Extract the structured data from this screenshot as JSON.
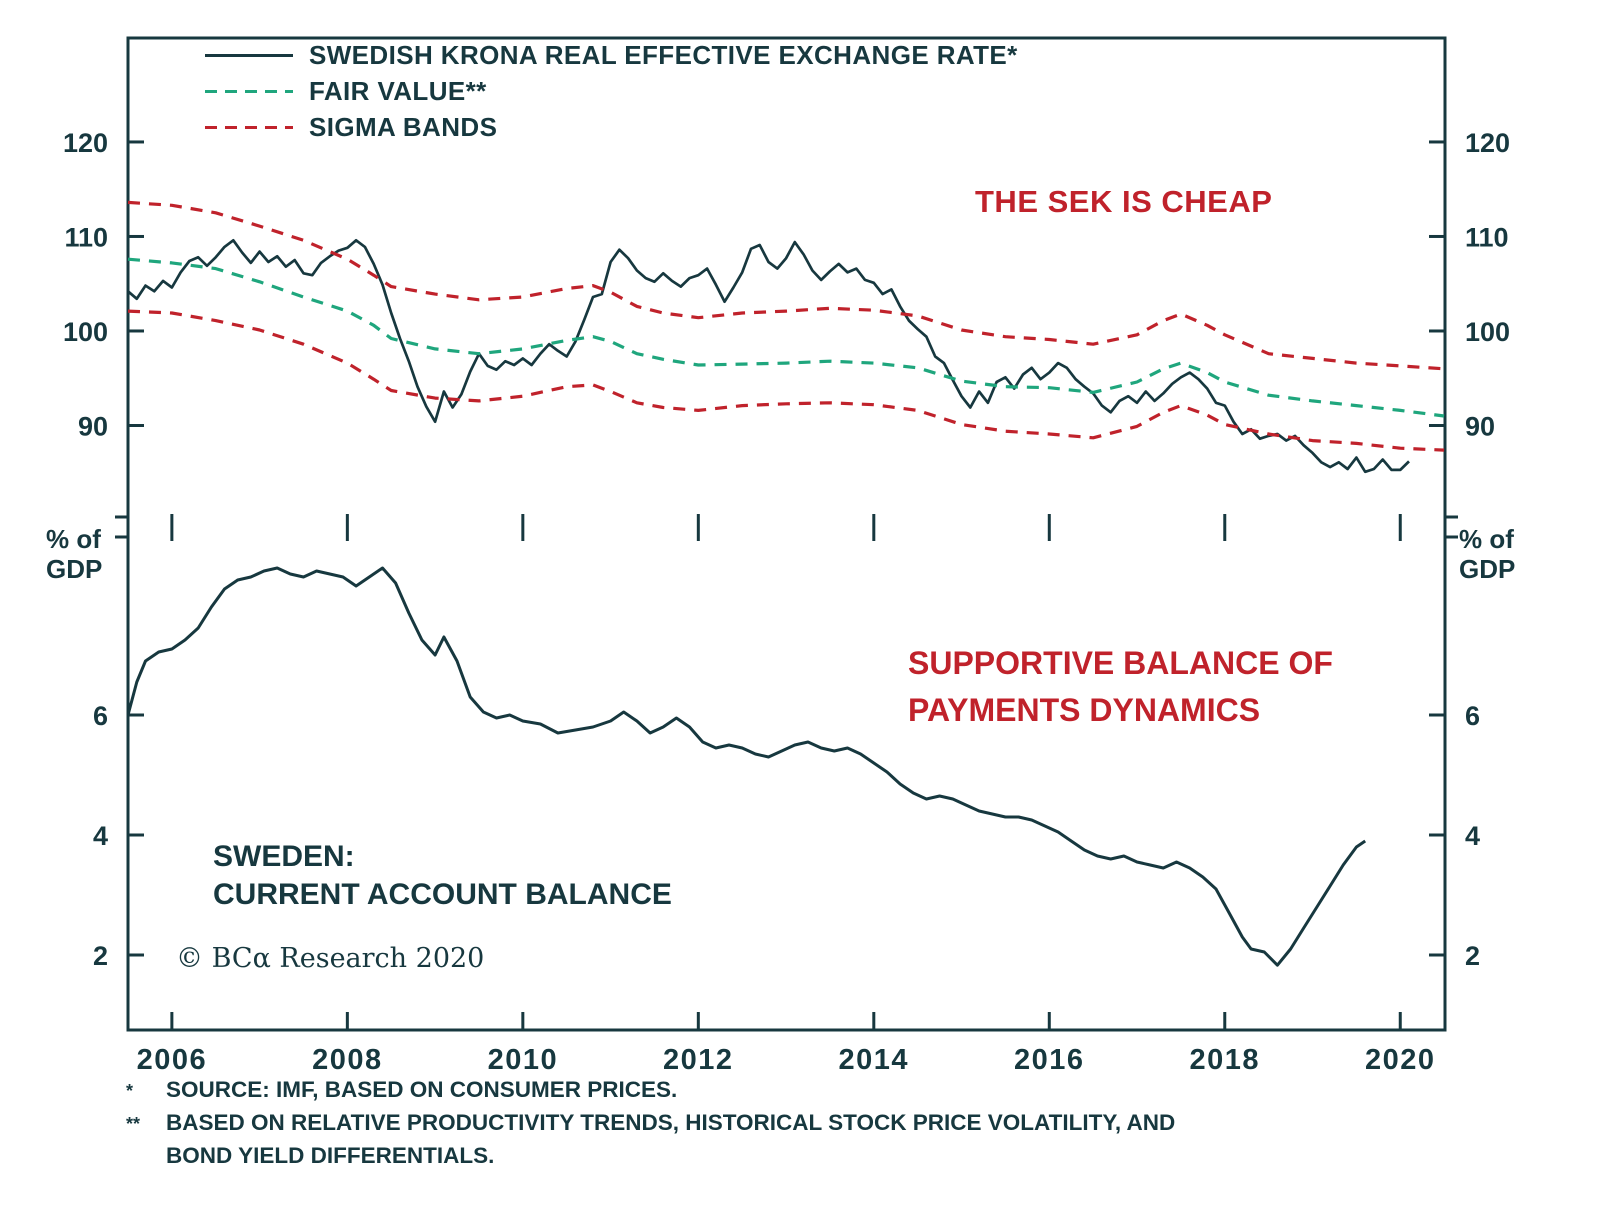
{
  "colors": {
    "ink": "#17383f",
    "red": "#c0222b",
    "green": "#1fa67d"
  },
  "legend": [
    {
      "label": "SWEDISH KRONA REAL EFFECTIVE EXCHANGE RATE*",
      "style": "solid",
      "color": "#17383f"
    },
    {
      "label": "FAIR VALUE**",
      "style": "dashed",
      "color": "#1fa67d"
    },
    {
      "label": "SIGMA BANDS",
      "style": "dashed",
      "color": "#c0222b"
    }
  ],
  "copyright": "© BCα Research 2020",
  "footnotes": [
    {
      "marker": "*",
      "text": "SOURCE: IMF, BASED ON CONSUMER PRICES."
    },
    {
      "marker": "**",
      "text": "BASED ON RELATIVE PRODUCTIVITY TRENDS, HISTORICAL STOCK PRICE VOLATILITY, AND"
    },
    {
      "marker": "",
      "text": "BOND YIELD DIFFERENTIALS."
    }
  ],
  "chart_data": [
    {
      "type": "line",
      "title": "Swedish Krona Real Effective Exchange Rate vs Fair Value with Sigma Bands",
      "annotation": "THE SEK IS CHEAP",
      "xlim": [
        2005.5,
        2020.51
      ],
      "ylim": [
        80,
        131
      ],
      "y_ticks": [
        90,
        100,
        110,
        120
      ],
      "grid": false,
      "legend_position": "top-left",
      "series": [
        {
          "id": "reer-line",
          "name": "SWEDISH KRONA REAL EFFECTIVE EXCHANGE RATE*",
          "color": "#17383f",
          "width": 2.7,
          "style": "solid",
          "x_start": 2005.5,
          "x_step": 0.1,
          "values": [
            104.2,
            103.4,
            104.8,
            104.2,
            105.3,
            104.6,
            106.2,
            107.4,
            107.8,
            106.9,
            107.8,
            108.9,
            109.6,
            108.3,
            107.2,
            108.4,
            107.3,
            107.9,
            106.8,
            107.5,
            106.1,
            105.9,
            107.2,
            107.9,
            108.5,
            108.8,
            109.6,
            108.9,
            107.1,
            104.9,
            101.9,
            99.2,
            96.8,
            94.1,
            92.0,
            90.4,
            93.6,
            91.9,
            93.3,
            95.7,
            97.6,
            96.3,
            95.9,
            96.8,
            96.4,
            97.1,
            96.4,
            97.6,
            98.6,
            97.9,
            97.3,
            98.9,
            101.2,
            103.6,
            103.9,
            107.3,
            108.6,
            107.7,
            106.4,
            105.6,
            105.2,
            106.1,
            105.3,
            104.7,
            105.6,
            105.9,
            106.6,
            104.9,
            103.1,
            104.6,
            106.2,
            108.7,
            109.1,
            107.3,
            106.6,
            107.7,
            109.4,
            108.1,
            106.4,
            105.4,
            106.3,
            107.1,
            106.2,
            106.6,
            105.4,
            105.1,
            103.9,
            104.4,
            102.6,
            101.1,
            100.2,
            99.4,
            97.3,
            96.6,
            94.8,
            93.1,
            91.9,
            93.6,
            92.4,
            94.6,
            95.1,
            93.9,
            95.4,
            96.1,
            94.9,
            95.6,
            96.6,
            96.1,
            94.9,
            94.1,
            93.4,
            92.1,
            91.4,
            92.6,
            93.1,
            92.4,
            93.6,
            92.6,
            93.4,
            94.4,
            95.1,
            95.6,
            94.9,
            93.9,
            92.4,
            92.1,
            90.4,
            89.1,
            89.6,
            88.6,
            88.9,
            89.1,
            88.4,
            88.9,
            87.9,
            87.1,
            86.1,
            85.6,
            86.1,
            85.4,
            86.6,
            85.1,
            85.4,
            86.4,
            85.3,
            85.3,
            86.2
          ]
        },
        {
          "id": "fair-value-line",
          "name": "FAIR VALUE**",
          "color": "#1fa67d",
          "width": 3.2,
          "style": "dashed",
          "points": [
            [
              2005.5,
              107.6
            ],
            [
              2006,
              107.2
            ],
            [
              2006.5,
              106.6
            ],
            [
              2007,
              105.2
            ],
            [
              2007.5,
              103.6
            ],
            [
              2008,
              102.1
            ],
            [
              2008.3,
              100.6
            ],
            [
              2008.5,
              99.2
            ],
            [
              2009,
              98.1
            ],
            [
              2009.5,
              97.6
            ],
            [
              2010,
              98.1
            ],
            [
              2010.5,
              99.0
            ],
            [
              2010.8,
              99.4
            ],
            [
              2011,
              98.9
            ],
            [
              2011.3,
              97.6
            ],
            [
              2011.6,
              97.0
            ],
            [
              2012,
              96.4
            ],
            [
              2012.5,
              96.5
            ],
            [
              2013,
              96.6
            ],
            [
              2013.5,
              96.8
            ],
            [
              2014,
              96.6
            ],
            [
              2014.5,
              96.1
            ],
            [
              2015,
              94.7
            ],
            [
              2015.5,
              94.1
            ],
            [
              2016,
              94.0
            ],
            [
              2016.5,
              93.5
            ],
            [
              2017,
              94.6
            ],
            [
              2017.3,
              96.0
            ],
            [
              2017.5,
              96.6
            ],
            [
              2017.8,
              95.6
            ],
            [
              2018,
              94.6
            ],
            [
              2018.5,
              93.2
            ],
            [
              2019,
              92.6
            ],
            [
              2019.5,
              92.1
            ],
            [
              2020,
              91.6
            ],
            [
              2020.5,
              91.0
            ]
          ]
        },
        {
          "id": "sigma-band-upper",
          "name": "SIGMA BANDS (UPPER)",
          "color": "#c0222b",
          "width": 3.2,
          "style": "dashed",
          "points": [
            [
              2005.5,
              113.6
            ],
            [
              2006,
              113.3
            ],
            [
              2006.5,
              112.5
            ],
            [
              2007,
              111.1
            ],
            [
              2007.5,
              109.6
            ],
            [
              2008,
              107.6
            ],
            [
              2008.3,
              105.9
            ],
            [
              2008.5,
              104.7
            ],
            [
              2009,
              103.9
            ],
            [
              2009.5,
              103.3
            ],
            [
              2010,
              103.6
            ],
            [
              2010.5,
              104.5
            ],
            [
              2010.8,
              104.8
            ],
            [
              2011,
              104.1
            ],
            [
              2011.3,
              102.6
            ],
            [
              2011.6,
              101.9
            ],
            [
              2012,
              101.4
            ],
            [
              2012.5,
              101.9
            ],
            [
              2013,
              102.1
            ],
            [
              2013.5,
              102.4
            ],
            [
              2014,
              102.2
            ],
            [
              2014.5,
              101.6
            ],
            [
              2015,
              100.1
            ],
            [
              2015.5,
              99.4
            ],
            [
              2016,
              99.1
            ],
            [
              2016.5,
              98.6
            ],
            [
              2017,
              99.6
            ],
            [
              2017.3,
              101.1
            ],
            [
              2017.5,
              101.8
            ],
            [
              2017.8,
              100.6
            ],
            [
              2018,
              99.6
            ],
            [
              2018.5,
              97.6
            ],
            [
              2019,
              97.1
            ],
            [
              2019.5,
              96.6
            ],
            [
              2020,
              96.3
            ],
            [
              2020.5,
              96.0
            ]
          ]
        },
        {
          "id": "sigma-band-lower",
          "name": "SIGMA BANDS (LOWER)",
          "color": "#c0222b",
          "width": 3.2,
          "style": "dashed",
          "points": [
            [
              2005.5,
              102.1
            ],
            [
              2006,
              101.9
            ],
            [
              2006.5,
              101.1
            ],
            [
              2007,
              100.1
            ],
            [
              2007.5,
              98.6
            ],
            [
              2008,
              96.6
            ],
            [
              2008.3,
              94.9
            ],
            [
              2008.5,
              93.7
            ],
            [
              2009,
              92.9
            ],
            [
              2009.5,
              92.6
            ],
            [
              2010,
              93.1
            ],
            [
              2010.5,
              94.1
            ],
            [
              2010.8,
              94.3
            ],
            [
              2011,
              93.6
            ],
            [
              2011.3,
              92.4
            ],
            [
              2011.6,
              91.9
            ],
            [
              2012,
              91.6
            ],
            [
              2012.5,
              92.1
            ],
            [
              2013,
              92.3
            ],
            [
              2013.5,
              92.4
            ],
            [
              2014,
              92.2
            ],
            [
              2014.5,
              91.6
            ],
            [
              2015,
              90.1
            ],
            [
              2015.5,
              89.4
            ],
            [
              2016,
              89.1
            ],
            [
              2016.5,
              88.7
            ],
            [
              2017,
              89.9
            ],
            [
              2017.3,
              91.4
            ],
            [
              2017.5,
              92.1
            ],
            [
              2017.8,
              91.1
            ],
            [
              2018,
              90.1
            ],
            [
              2018.5,
              89.1
            ],
            [
              2019,
              88.4
            ],
            [
              2019.5,
              88.1
            ],
            [
              2020,
              87.6
            ],
            [
              2020.5,
              87.4
            ]
          ]
        }
      ]
    },
    {
      "type": "line",
      "title": "Sweden: Current Account Balance",
      "annotation": "SUPPORTIVE BALANCE OF\nPAYMENTS DYNAMICS",
      "label": "SWEDEN:\nCURRENT ACCOUNT BALANCE",
      "ylabel": "% of\nGDP",
      "xlim": [
        2005.5,
        2020.51
      ],
      "ylim": [
        0.75,
        9.0
      ],
      "y_ticks": [
        2,
        4,
        6
      ],
      "x_ticks": [
        2006,
        2008,
        2010,
        2012,
        2014,
        2016,
        2018,
        2020
      ],
      "grid": false,
      "series": [
        {
          "id": "current-account-line",
          "name": "CURRENT ACCOUNT BALANCE (% OF GDP)",
          "color": "#17383f",
          "width": 3.0,
          "style": "solid",
          "points": [
            [
              2005.5,
              6.0
            ],
            [
              2005.6,
              6.55
            ],
            [
              2005.7,
              6.9
            ],
            [
              2005.85,
              7.05
            ],
            [
              2006.0,
              7.1
            ],
            [
              2006.15,
              7.25
            ],
            [
              2006.3,
              7.45
            ],
            [
              2006.45,
              7.8
            ],
            [
              2006.6,
              8.1
            ],
            [
              2006.75,
              8.25
            ],
            [
              2006.9,
              8.3
            ],
            [
              2007.05,
              8.4
            ],
            [
              2007.2,
              8.45
            ],
            [
              2007.35,
              8.35
            ],
            [
              2007.5,
              8.3
            ],
            [
              2007.65,
              8.4
            ],
            [
              2007.8,
              8.35
            ],
            [
              2007.95,
              8.3
            ],
            [
              2008.1,
              8.15
            ],
            [
              2008.25,
              8.3
            ],
            [
              2008.4,
              8.45
            ],
            [
              2008.55,
              8.2
            ],
            [
              2008.7,
              7.7
            ],
            [
              2008.85,
              7.25
            ],
            [
              2009.0,
              7.0
            ],
            [
              2009.1,
              7.3
            ],
            [
              2009.25,
              6.9
            ],
            [
              2009.4,
              6.3
            ],
            [
              2009.55,
              6.05
            ],
            [
              2009.7,
              5.95
            ],
            [
              2009.85,
              6.0
            ],
            [
              2010.0,
              5.9
            ],
            [
              2010.2,
              5.85
            ],
            [
              2010.4,
              5.7
            ],
            [
              2010.6,
              5.75
            ],
            [
              2010.8,
              5.8
            ],
            [
              2011.0,
              5.9
            ],
            [
              2011.15,
              6.05
            ],
            [
              2011.3,
              5.9
            ],
            [
              2011.45,
              5.7
            ],
            [
              2011.6,
              5.8
            ],
            [
              2011.75,
              5.95
            ],
            [
              2011.9,
              5.8
            ],
            [
              2012.05,
              5.55
            ],
            [
              2012.2,
              5.45
            ],
            [
              2012.35,
              5.5
            ],
            [
              2012.5,
              5.45
            ],
            [
              2012.65,
              5.35
            ],
            [
              2012.8,
              5.3
            ],
            [
              2012.95,
              5.4
            ],
            [
              2013.1,
              5.5
            ],
            [
              2013.25,
              5.55
            ],
            [
              2013.4,
              5.45
            ],
            [
              2013.55,
              5.4
            ],
            [
              2013.7,
              5.45
            ],
            [
              2013.85,
              5.35
            ],
            [
              2014.0,
              5.2
            ],
            [
              2014.15,
              5.05
            ],
            [
              2014.3,
              4.85
            ],
            [
              2014.45,
              4.7
            ],
            [
              2014.6,
              4.6
            ],
            [
              2014.75,
              4.65
            ],
            [
              2014.9,
              4.6
            ],
            [
              2015.05,
              4.5
            ],
            [
              2015.2,
              4.4
            ],
            [
              2015.35,
              4.35
            ],
            [
              2015.5,
              4.3
            ],
            [
              2015.65,
              4.3
            ],
            [
              2015.8,
              4.25
            ],
            [
              2015.95,
              4.15
            ],
            [
              2016.1,
              4.05
            ],
            [
              2016.25,
              3.9
            ],
            [
              2016.4,
              3.75
            ],
            [
              2016.55,
              3.65
            ],
            [
              2016.7,
              3.6
            ],
            [
              2016.85,
              3.65
            ],
            [
              2017.0,
              3.55
            ],
            [
              2017.15,
              3.5
            ],
            [
              2017.3,
              3.45
            ],
            [
              2017.45,
              3.55
            ],
            [
              2017.6,
              3.45
            ],
            [
              2017.75,
              3.3
            ],
            [
              2017.9,
              3.1
            ],
            [
              2018.05,
              2.7
            ],
            [
              2018.2,
              2.3
            ],
            [
              2018.3,
              2.1
            ],
            [
              2018.45,
              2.05
            ],
            [
              2018.6,
              1.83
            ],
            [
              2018.75,
              2.1
            ],
            [
              2018.9,
              2.45
            ],
            [
              2019.05,
              2.8
            ],
            [
              2019.2,
              3.15
            ],
            [
              2019.35,
              3.5
            ],
            [
              2019.5,
              3.8
            ],
            [
              2019.6,
              3.9
            ]
          ]
        }
      ]
    }
  ]
}
